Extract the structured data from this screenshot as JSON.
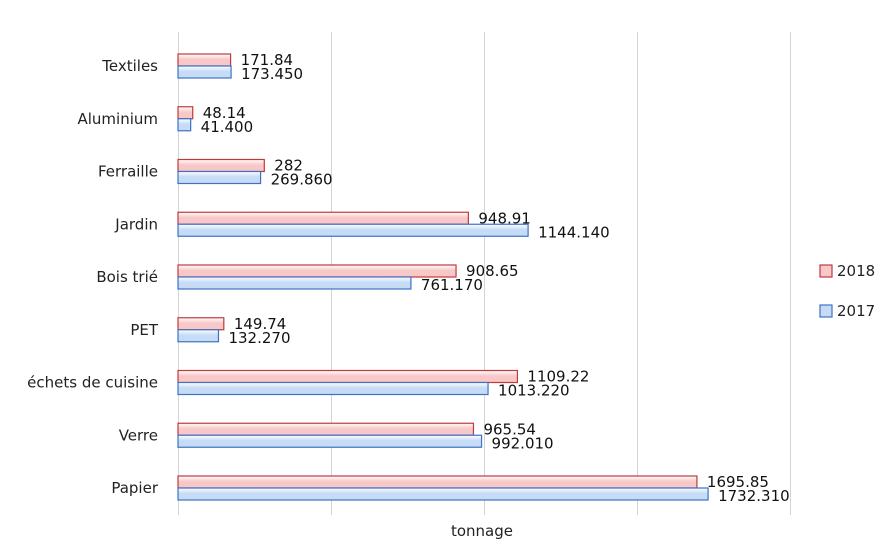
{
  "chart_data": {
    "type": "bar",
    "orientation": "horizontal",
    "categories": [
      "Textiles",
      "Aluminium",
      "Ferraille",
      "Jardin",
      "Bois trié",
      "PET",
      "échets de cuisine",
      "Verre",
      "Papier"
    ],
    "series": [
      {
        "name": "2018",
        "values": [
          171.84,
          48.14,
          282,
          948.91,
          908.65,
          149.74,
          1109.22,
          965.54,
          1695.85
        ],
        "labels": [
          "171.84",
          "48.14",
          "282",
          "948.91",
          "908.65",
          "149.74",
          "1109.22",
          "965.54",
          "1695.85"
        ],
        "color": "#f8c8c8",
        "border": "#c0393b"
      },
      {
        "name": "2017",
        "values": [
          173.45,
          41.4,
          269.86,
          1144.14,
          761.17,
          132.27,
          1013.22,
          992.01,
          1732.31
        ],
        "labels": [
          "173.450",
          "41.400",
          "269.860",
          "1144.140",
          "761.170",
          "132.270",
          "1013.220",
          "992.010",
          "1732.310"
        ],
        "color": "#c6dcf6",
        "border": "#3d72c4"
      }
    ],
    "title": "",
    "xlabel": "tonnage",
    "ylabel": "",
    "xlim": [
      0,
      2000
    ],
    "grid": true,
    "legend_position": "right"
  }
}
